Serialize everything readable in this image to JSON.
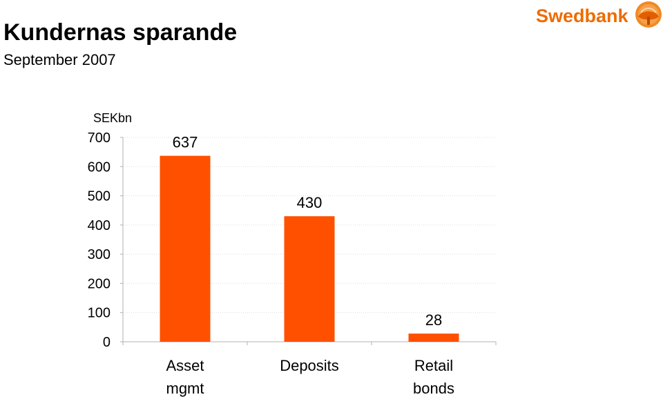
{
  "header": {
    "title": "Kundernas sparande",
    "subtitle": "September 2007",
    "brand": "Swedbank",
    "brand_color": "#ee6b00"
  },
  "chart_data": {
    "type": "bar",
    "title": "Kundernas sparande",
    "subtitle": "September 2007",
    "unit_label": "SEKbn",
    "categories": [
      [
        "Asset",
        "mgmt"
      ],
      [
        "Deposits"
      ],
      [
        "Retail",
        "bonds"
      ]
    ],
    "values": [
      637,
      430,
      28
    ],
    "data_labels": [
      "637",
      "430",
      "28"
    ],
    "yticks": [
      "0",
      "100",
      "200",
      "300",
      "400",
      "500",
      "600",
      "700"
    ],
    "ylim": [
      0,
      700
    ],
    "grid": true,
    "legend": "none",
    "bar_color": "#ff5000"
  }
}
